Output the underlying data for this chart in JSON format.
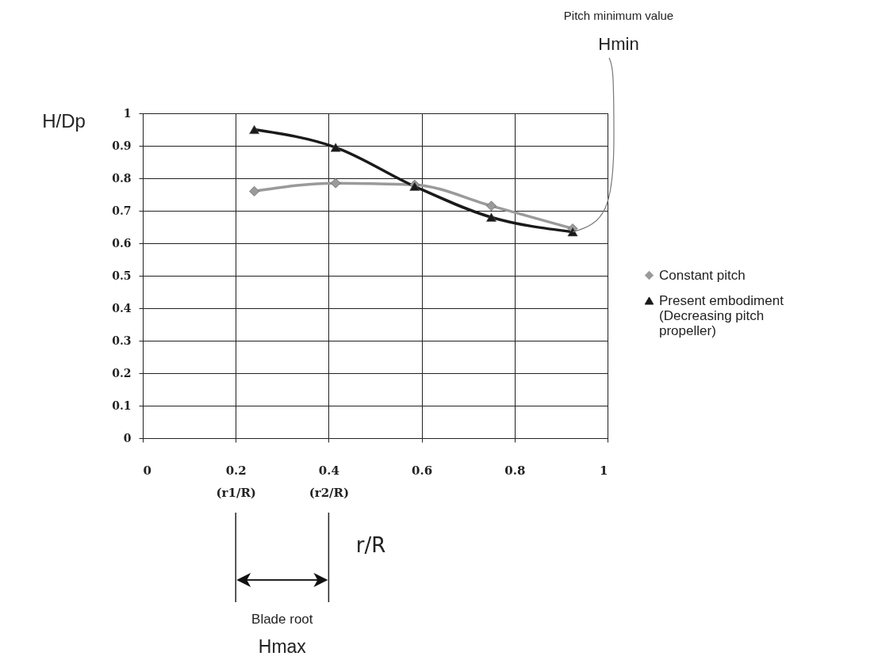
{
  "chart_data": {
    "type": "line",
    "xlabel": "r/R",
    "ylabel": "H/Dp",
    "xlim": [
      0,
      1
    ],
    "ylim": [
      0,
      1
    ],
    "xticks": [
      0,
      {
        "value": 0.2,
        "label": "0.2\n(r1/R)"
      },
      {
        "value": 0.4,
        "label": "0.4\n(r2/R)"
      },
      0.6,
      0.8,
      1
    ],
    "yticks": [
      0,
      0.1,
      0.2,
      0.3,
      0.4,
      0.5,
      0.6,
      0.7,
      0.8,
      0.9,
      1
    ],
    "grid": true,
    "legend": "right",
    "line_style": "solid",
    "series": [
      {
        "name": "Constant pitch",
        "color": "#9a9a9a",
        "marker": "diamond",
        "x": [
          0.24,
          0.415,
          0.585,
          0.75,
          0.925
        ],
        "values": [
          0.76,
          0.785,
          0.78,
          0.715,
          0.645
        ]
      },
      {
        "name": "Present embodiment\n(Decreasing pitch\npropeller)",
        "color": "#1a1a1a",
        "marker": "triangle",
        "x": [
          0.24,
          0.415,
          0.585,
          0.75,
          0.925
        ],
        "values": [
          0.95,
          0.895,
          0.775,
          0.68,
          0.635
        ]
      }
    ],
    "annotations": [
      "Pitch minimum value",
      {
        "text": "Hmin",
        "x": 0.925,
        "y": 0.635
      },
      "Blade root",
      "Hmax"
    ]
  }
}
